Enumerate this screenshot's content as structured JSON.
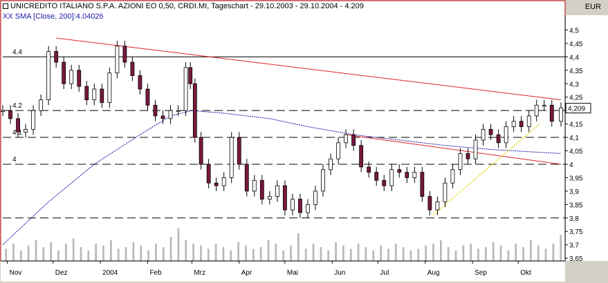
{
  "header": {
    "title": "UNICREDITO ITALIANO S.P.A. AZIONI EO 0,50, CRDI.MI, Tageschart - 29.10.2003 - 29.10.2004 - 4.209",
    "sma_label": "XX SMA [Close, 200]:4.04026",
    "currency": "EUR"
  },
  "colors": {
    "background": "#ffffff",
    "panel": "#d4d0c8",
    "candle_up": "#ffffff",
    "candle_down": "#7a1840",
    "sma": "#1a1aa8",
    "trendline": "#e02020",
    "support": "#e8e040",
    "volume": "#b8b8b8",
    "last_price_bg": "#ffffff"
  },
  "chart_data": {
    "type": "candlestick",
    "title": "UNICREDITO ITALIANO S.P.A. AZIONI EO 0,50, CRDI.MI, Tageschart - 29.10.2003 - 29.10.2004 - 4.209",
    "ylabel": "EUR",
    "ylim": [
      3.64,
      4.55
    ],
    "y_ticks": [
      "4,5",
      "4,45",
      "4,4",
      "4,35",
      "4,3",
      "4,25",
      "4,2",
      "4,15",
      "4,1",
      "4,05",
      "4",
      "3,95",
      "3,9",
      "3,85",
      "3,8",
      "3,75",
      "3,7",
      "3,65"
    ],
    "y_tick_values": [
      4.5,
      4.45,
      4.4,
      4.35,
      4.3,
      4.25,
      4.2,
      4.15,
      4.1,
      4.05,
      4.0,
      3.95,
      3.9,
      3.85,
      3.8,
      3.75,
      3.7,
      3.65
    ],
    "x_tick_labels": [
      "Nov",
      "Dez",
      "2004",
      "Feb",
      "Mrz",
      "Apr",
      "Mai",
      "Jun",
      "Jul",
      "Aug",
      "Sep",
      "Okt"
    ],
    "x_tick_days": [
      3,
      33,
      64,
      95,
      124,
      155,
      185,
      216,
      246,
      277,
      308,
      338
    ],
    "x_range_days": [
      0,
      366
    ],
    "last_price": "4,209",
    "grid": "dashed horizontal levels",
    "horizontal_levels": [
      {
        "value": 4.4,
        "label": "4.4",
        "style": "solid"
      },
      {
        "value": 4.2,
        "label": "4.2",
        "style": "dashed"
      },
      {
        "value": 4.1,
        "label": "4.1",
        "style": "dashed"
      },
      {
        "value": 4.0,
        "label": "4",
        "style": "dashed"
      },
      {
        "value": 3.8,
        "label": "",
        "style": "dashed"
      }
    ],
    "trendlines": [
      {
        "color": "trendline",
        "x": [
          35,
          366
        ],
        "y": [
          4.47,
          4.24
        ]
      },
      {
        "color": "trendline",
        "x": [
          225,
          366
        ],
        "y": [
          4.11,
          4.0
        ]
      },
      {
        "color": "support",
        "x": [
          282,
          352
        ],
        "y": [
          3.81,
          4.15
        ]
      }
    ],
    "sma_series": {
      "name": "XX SMA [Close, 200]",
      "x": [
        0,
        30,
        60,
        90,
        110,
        124,
        145,
        175,
        200,
        230,
        260,
        290,
        320,
        350,
        366
      ],
      "y": [
        3.7,
        3.86,
        4.0,
        4.11,
        4.18,
        4.2,
        4.19,
        4.17,
        4.14,
        4.11,
        4.09,
        4.07,
        4.055,
        4.045,
        4.04
      ]
    },
    "price_series": {
      "name": "close",
      "x": [
        0,
        5,
        10,
        15,
        20,
        25,
        30,
        35,
        40,
        45,
        50,
        55,
        60,
        65,
        70,
        75,
        80,
        85,
        90,
        95,
        100,
        105,
        110,
        115,
        120,
        123,
        126,
        130,
        135,
        140,
        145,
        150,
        155,
        160,
        165,
        170,
        175,
        180,
        185,
        190,
        195,
        200,
        205,
        210,
        215,
        220,
        225,
        230,
        235,
        240,
        245,
        250,
        255,
        260,
        265,
        270,
        275,
        280,
        285,
        290,
        295,
        300,
        305,
        310,
        315,
        320,
        325,
        330,
        335,
        340,
        345,
        350,
        355,
        360,
        366
      ],
      "y": [
        4.2,
        4.17,
        4.12,
        4.13,
        4.2,
        4.24,
        4.42,
        4.38,
        4.3,
        4.35,
        4.29,
        4.24,
        4.28,
        4.23,
        4.34,
        4.44,
        4.38,
        4.33,
        4.28,
        4.22,
        4.18,
        4.17,
        4.2,
        4.2,
        4.36,
        4.3,
        4.1,
        4.0,
        3.93,
        3.92,
        3.95,
        4.1,
        4.0,
        3.9,
        3.94,
        3.87,
        3.88,
        3.92,
        3.83,
        3.87,
        3.82,
        3.85,
        3.9,
        3.98,
        4.02,
        4.08,
        4.11,
        4.07,
        3.99,
        3.97,
        3.94,
        3.92,
        3.98,
        3.97,
        3.95,
        3.97,
        3.88,
        3.83,
        3.86,
        3.93,
        3.98,
        4.04,
        4.02,
        4.09,
        4.13,
        4.11,
        4.08,
        4.14,
        4.16,
        4.14,
        4.18,
        4.22,
        4.22,
        4.16,
        4.21
      ]
    },
    "volume_series": {
      "name": "volume",
      "relative_values": [
        0.35,
        0.5,
        0.3,
        0.45,
        0.6,
        0.4,
        0.55,
        0.3,
        0.5,
        0.65,
        0.4,
        0.3,
        0.5,
        0.45,
        0.6,
        0.35,
        0.4,
        0.55,
        0.45,
        0.3,
        0.5,
        0.4,
        0.7,
        0.95,
        0.6,
        0.5,
        0.45,
        0.35,
        0.5,
        0.4,
        0.3,
        0.55,
        0.45,
        0.35,
        0.4,
        0.6,
        0.5,
        0.3,
        0.45,
        0.8,
        0.35,
        0.5,
        0.4,
        0.3,
        0.55,
        0.45,
        0.35,
        0.5,
        0.4,
        0.3,
        0.45,
        0.35,
        0.5,
        0.4,
        0.3,
        0.35,
        0.45,
        0.5,
        0.6,
        0.4,
        0.3,
        0.45,
        0.5,
        0.35,
        0.4,
        0.55,
        0.45,
        0.3,
        0.5,
        0.4,
        0.6,
        0.45,
        0.35,
        0.5,
        0.75
      ]
    }
  }
}
